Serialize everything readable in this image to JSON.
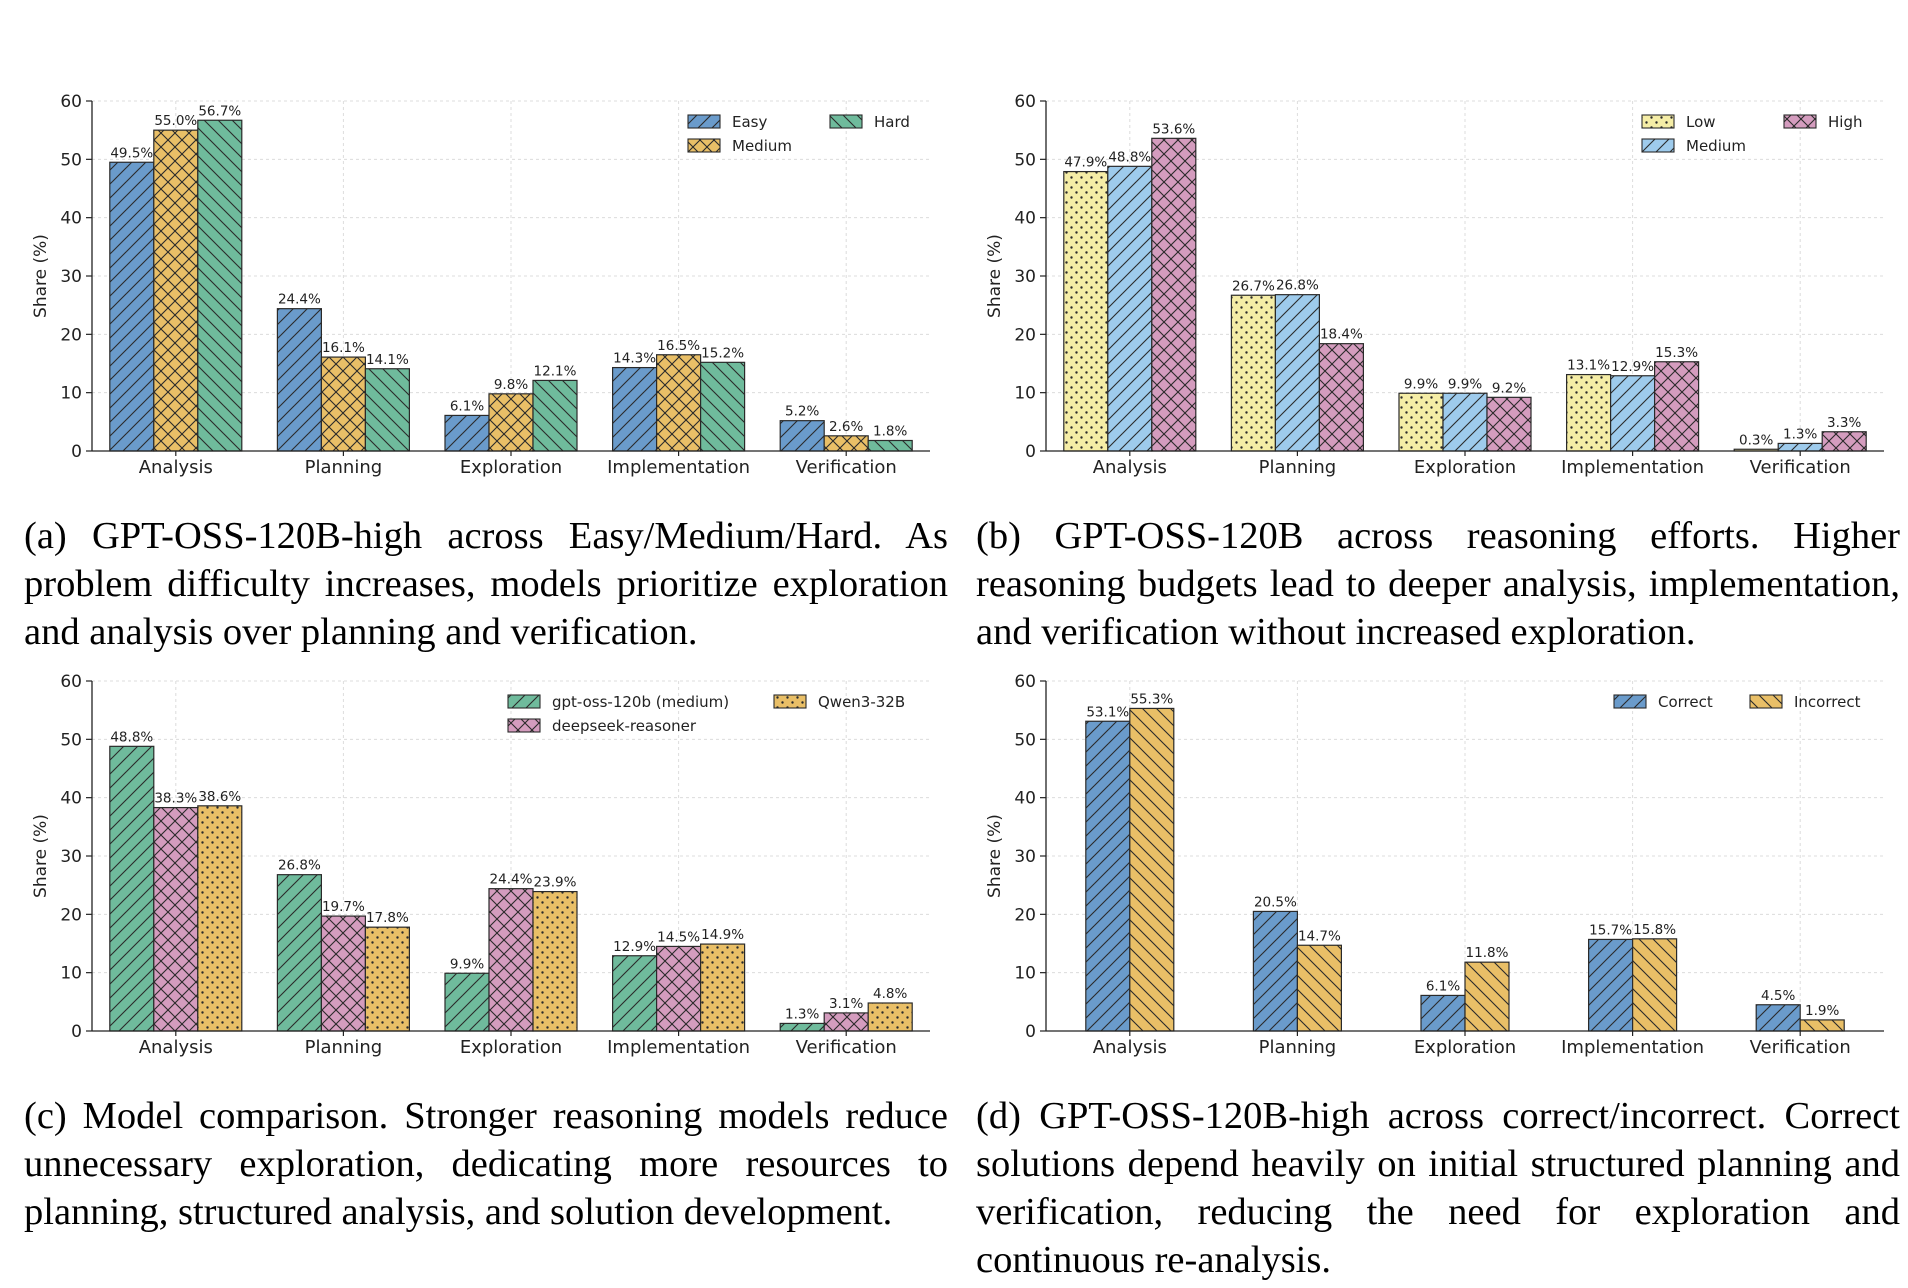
{
  "chart_data": [
    {
      "type": "bar",
      "ylabel": "Share (%)",
      "ylim": [
        0,
        60
      ],
      "yticks": [
        0,
        10,
        20,
        30,
        40,
        50,
        60
      ],
      "grid": true,
      "legend_placement": "top-right",
      "categories": [
        "Analysis",
        "Planning",
        "Exploration",
        "Implementation",
        "Verification"
      ],
      "series": [
        {
          "name": "Easy",
          "color": "#6a9bcb",
          "pattern": "diag-forward",
          "values": [
            49.5,
            24.4,
            6.1,
            14.3,
            5.2
          ],
          "labels": [
            "49.5%",
            "24.4%",
            "6.1%",
            "14.3%",
            "5.2%"
          ]
        },
        {
          "name": "Medium",
          "color": "#e9bf67",
          "pattern": "crosshatch",
          "values": [
            55.0,
            16.1,
            9.8,
            16.5,
            2.6
          ],
          "labels": [
            "55.0%",
            "16.1%",
            "9.8%",
            "16.5%",
            "2.6%"
          ]
        },
        {
          "name": "Hard",
          "color": "#6fbb9c",
          "pattern": "diag-back",
          "values": [
            56.7,
            14.1,
            12.1,
            15.2,
            1.8
          ],
          "labels": [
            "56.7%",
            "14.1%",
            "12.1%",
            "15.2%",
            "1.8%"
          ]
        }
      ],
      "caption": "(a) GPT-OSS-120B-high across Easy/Medium/Hard. As problem difficulty increases, models prioritize exploration and analysis over planning and verification."
    },
    {
      "type": "bar",
      "ylabel": "Share (%)",
      "ylim": [
        0,
        60
      ],
      "yticks": [
        0,
        10,
        20,
        30,
        40,
        50,
        60
      ],
      "grid": true,
      "legend_placement": "top-right",
      "categories": [
        "Analysis",
        "Planning",
        "Exploration",
        "Implementation",
        "Verification"
      ],
      "series": [
        {
          "name": "Low",
          "color": "#f5eda6",
          "pattern": "dots",
          "values": [
            47.9,
            26.7,
            9.9,
            13.1,
            0.3
          ],
          "labels": [
            "47.9%",
            "26.7%",
            "9.9%",
            "13.1%",
            "0.3%"
          ]
        },
        {
          "name": "Medium",
          "color": "#9ecbec",
          "pattern": "diag-forward",
          "values": [
            48.8,
            26.8,
            9.9,
            12.9,
            1.3
          ],
          "labels": [
            "48.8%",
            "26.8%",
            "9.9%",
            "12.9%",
            "1.3%"
          ]
        },
        {
          "name": "High",
          "color": "#d49cbe",
          "pattern": "crosshatch",
          "values": [
            53.6,
            18.4,
            9.2,
            15.3,
            3.3
          ],
          "labels": [
            "53.6%",
            "18.4%",
            "9.2%",
            "15.3%",
            "3.3%"
          ]
        }
      ],
      "caption": "(b) GPT-OSS-120B across reasoning efforts. Higher reasoning budgets lead to deeper analysis, implementation, and verification without increased exploration."
    },
    {
      "type": "bar",
      "ylabel": "Share (%)",
      "ylim": [
        0,
        60
      ],
      "yticks": [
        0,
        10,
        20,
        30,
        40,
        50,
        60
      ],
      "grid": true,
      "legend_placement": "top-right",
      "categories": [
        "Analysis",
        "Planning",
        "Exploration",
        "Implementation",
        "Verification"
      ],
      "series": [
        {
          "name": "gpt-oss-120b (medium)",
          "color": "#6fbb9c",
          "pattern": "diag-forward",
          "values": [
            48.8,
            26.8,
            9.9,
            12.9,
            1.3
          ],
          "labels": [
            "48.8%",
            "26.8%",
            "9.9%",
            "12.9%",
            "1.3%"
          ]
        },
        {
          "name": "deepseek-reasoner",
          "color": "#d49cbe",
          "pattern": "crosshatch",
          "values": [
            38.3,
            19.7,
            24.4,
            14.5,
            3.1
          ],
          "labels": [
            "38.3%",
            "19.7%",
            "24.4%",
            "14.5%",
            "3.1%"
          ]
        },
        {
          "name": "Qwen3-32B",
          "color": "#e9bf67",
          "pattern": "dots",
          "values": [
            38.6,
            17.8,
            23.9,
            14.9,
            4.8
          ],
          "labels": [
            "38.6%",
            "17.8%",
            "23.9%",
            "14.9%",
            "4.8%"
          ]
        }
      ],
      "caption": "(c) Model comparison.  Stronger reasoning models reduce unnecessary exploration, dedicating more resources to planning, structured analysis, and solution development."
    },
    {
      "type": "bar",
      "ylabel": "Share (%)",
      "ylim": [
        0,
        60
      ],
      "yticks": [
        0,
        10,
        20,
        30,
        40,
        50,
        60
      ],
      "grid": true,
      "legend_placement": "top-right",
      "categories": [
        "Analysis",
        "Planning",
        "Exploration",
        "Implementation",
        "Verification"
      ],
      "series": [
        {
          "name": "Correct",
          "color": "#6a9bcb",
          "pattern": "diag-forward",
          "values": [
            53.1,
            20.5,
            6.1,
            15.7,
            4.5
          ],
          "labels": [
            "53.1%",
            "20.5%",
            "6.1%",
            "15.7%",
            "4.5%"
          ]
        },
        {
          "name": "Incorrect",
          "color": "#e9bf67",
          "pattern": "diag-back",
          "values": [
            55.3,
            14.7,
            11.8,
            15.8,
            1.9
          ],
          "labels": [
            "55.3%",
            "14.7%",
            "11.8%",
            "15.8%",
            "1.9%"
          ]
        }
      ],
      "caption": "(d) GPT-OSS-120B-high across correct/incorrect. Correct solutions depend heavily on initial structured planning and verification, reducing the need for exploration and continuous re-analysis."
    }
  ]
}
